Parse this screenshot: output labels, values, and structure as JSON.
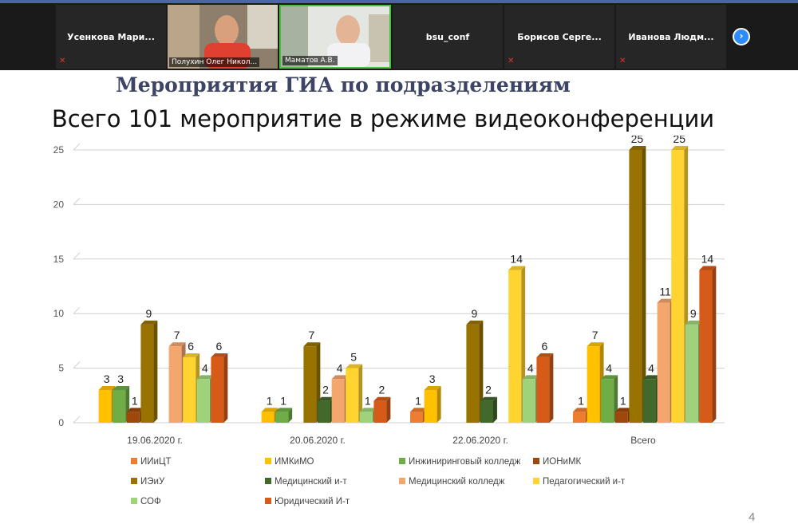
{
  "conference": {
    "participants": [
      {
        "name": "Усенкова  Мари...",
        "video": false,
        "muted": true
      },
      {
        "name": "Полухин Олег Никол...",
        "video": true,
        "muted": false
      },
      {
        "name": "Маматов А.В.",
        "video": true,
        "muted": false,
        "active": true
      },
      {
        "name": "bsu_conf",
        "video": false,
        "muted": false
      },
      {
        "name": "Борисов  Серге...",
        "video": false,
        "muted": true
      },
      {
        "name": "Иванова  Людм...",
        "video": false,
        "muted": true
      }
    ],
    "next_icon": "chevron-right-icon",
    "active_color": "#46c33a"
  },
  "slide": {
    "title": "Мероприятия ГИА по подразделениям",
    "subtitle": "Всего 101 мероприятие в режиме видеоконференции",
    "page_number": "4"
  },
  "chart_data": {
    "type": "bar",
    "categories": [
      "19.06.2020 г.",
      "20.06.2020 г.",
      "22.06.2020 г.",
      "Всего"
    ],
    "ylim": [
      0,
      25
    ],
    "yticks": [
      "0",
      "5",
      "10",
      "15",
      "20",
      "25"
    ],
    "grid": true,
    "legend_position": "bottom",
    "series": [
      {
        "name": "ИИиЦТ",
        "color": "#ed7d31",
        "values": [
          null,
          null,
          1,
          1
        ]
      },
      {
        "name": "ИМКиМО",
        "color": "#ffc000",
        "values": [
          3,
          1,
          3,
          7
        ]
      },
      {
        "name": "Инжиниринговый колледж",
        "color": "#70ad47",
        "values": [
          3,
          1,
          null,
          4
        ]
      },
      {
        "name": "ИОНиМК",
        "color": "#9e480e",
        "values": [
          1,
          null,
          null,
          1
        ]
      },
      {
        "name": "ИЭиУ",
        "color": "#997300",
        "values": [
          9,
          7,
          9,
          25
        ]
      },
      {
        "name": "Медицинский и-т",
        "color": "#43682b",
        "values": [
          null,
          2,
          2,
          4
        ]
      },
      {
        "name": "Медицинский колледж",
        "color": "#f4a66f",
        "values": [
          7,
          4,
          null,
          11
        ]
      },
      {
        "name": "Педагогический и-т",
        "color": "#ffd430",
        "values": [
          6,
          5,
          14,
          25
        ]
      },
      {
        "name": "СОФ",
        "color": "#9fd27a",
        "values": [
          4,
          1,
          4,
          9
        ]
      },
      {
        "name": "Юридический И-т",
        "color": "#d65a18",
        "values": [
          6,
          2,
          6,
          14
        ]
      }
    ]
  }
}
